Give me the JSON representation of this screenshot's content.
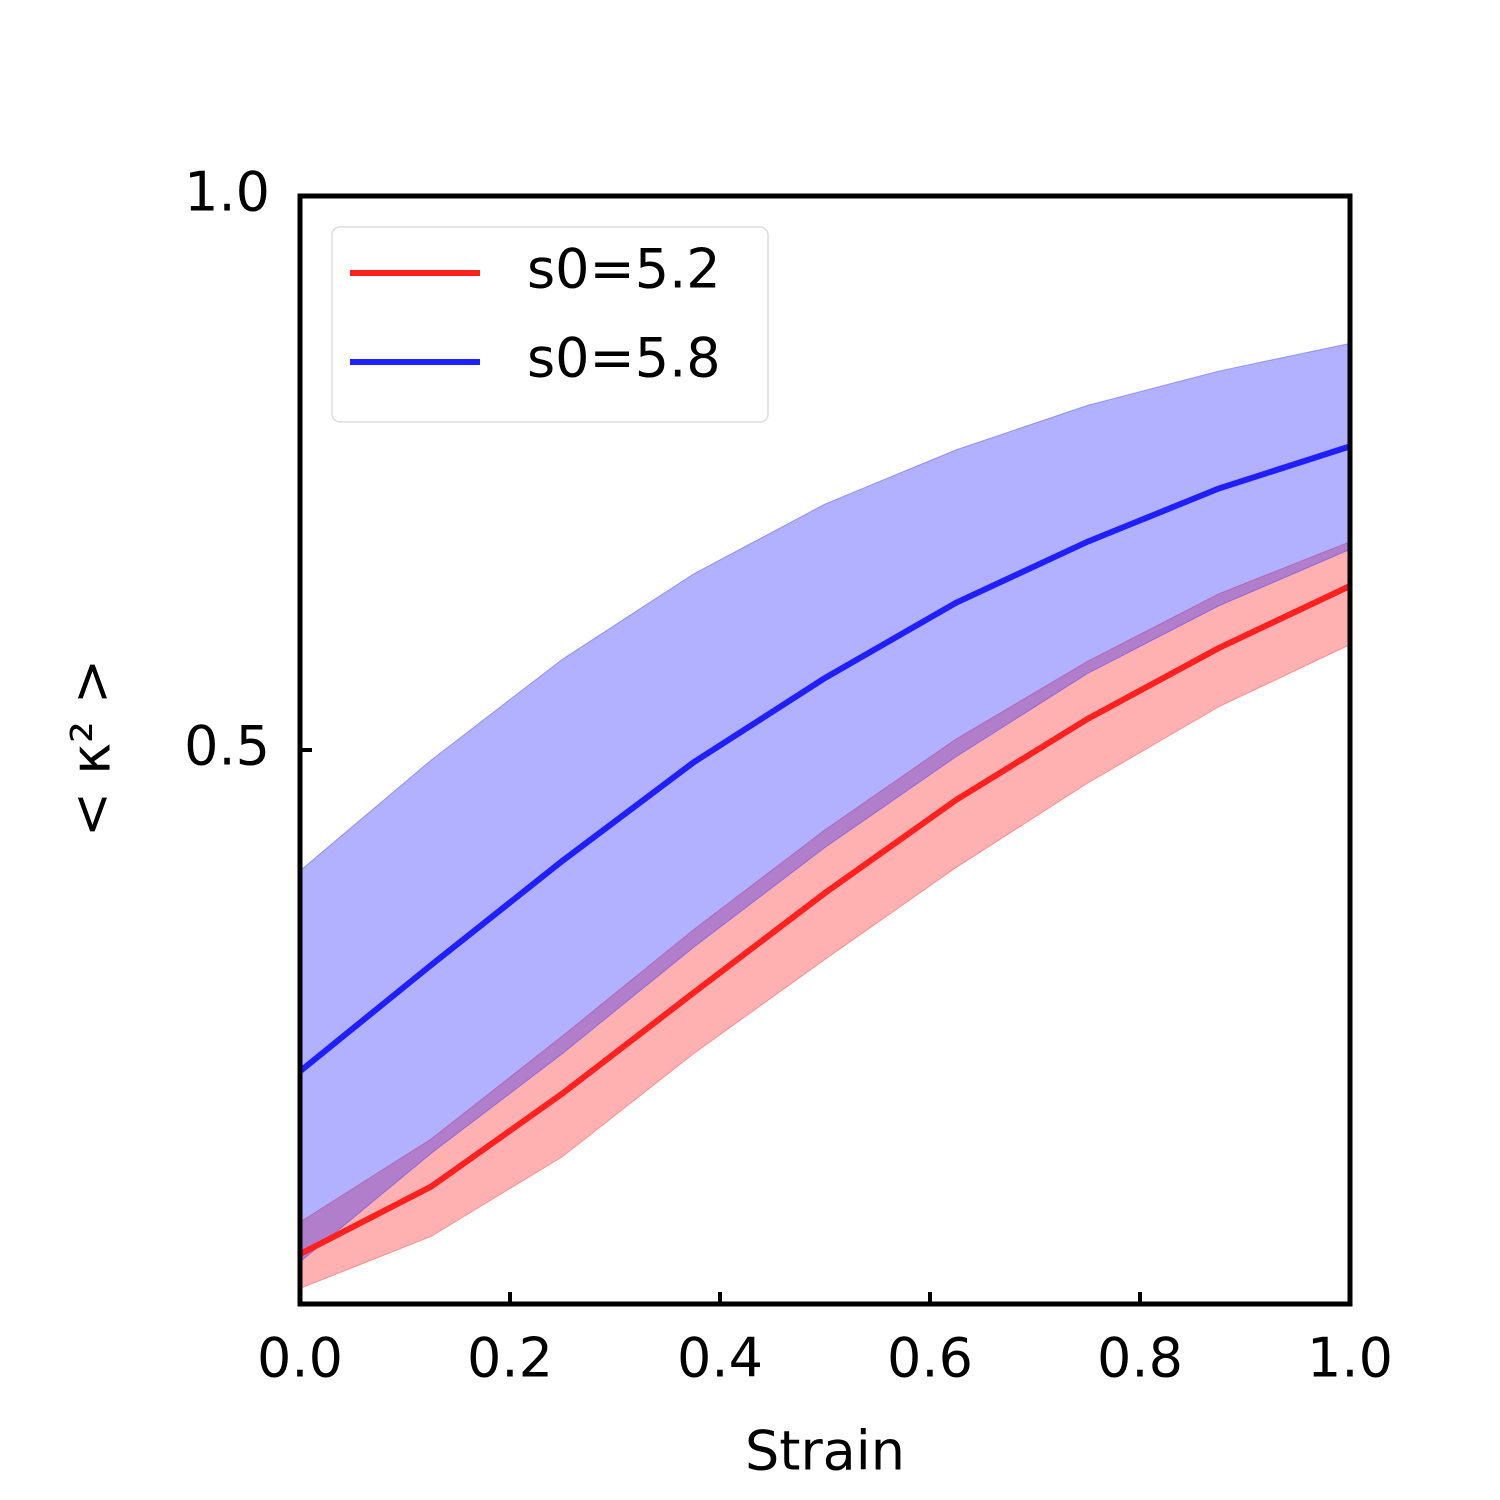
{
  "chart_data": {
    "type": "line",
    "x_label": "Strain",
    "y_label": "< κ² >",
    "x": [
      0,
      0.125,
      0.25,
      0.375,
      0.5,
      0.625,
      0.75,
      0.875,
      1.0
    ],
    "series": [
      {
        "name": "s0=5.2",
        "color": "#ff2020",
        "values": [
          0.045,
          0.106,
          0.19,
          0.281,
          0.371,
          0.455,
          0.528,
          0.592,
          0.648
        ],
        "lower": [
          0.014,
          0.061,
          0.133,
          0.226,
          0.311,
          0.394,
          0.47,
          0.539,
          0.595
        ],
        "upper": [
          0.074,
          0.149,
          0.242,
          0.338,
          0.428,
          0.51,
          0.58,
          0.641,
          0.688
        ]
      },
      {
        "name": "s0=5.8",
        "color": "#2020ff",
        "values": [
          0.21,
          0.306,
          0.4,
          0.489,
          0.565,
          0.633,
          0.688,
          0.736,
          0.774
        ],
        "lower": [
          0.038,
          0.136,
          0.226,
          0.322,
          0.412,
          0.494,
          0.569,
          0.63,
          0.681
        ],
        "upper": [
          0.391,
          0.491,
          0.582,
          0.659,
          0.722,
          0.771,
          0.811,
          0.842,
          0.867
        ]
      }
    ],
    "xlim": [
      0,
      1
    ],
    "ylim": [
      0,
      1
    ],
    "xticks": [
      {
        "value": 0,
        "label": "0.0"
      },
      0.2,
      0.4,
      0.6,
      0.8,
      {
        "value": 1,
        "label": "1.0"
      }
    ],
    "yticks": [
      0.5,
      {
        "value": 1,
        "label": "1.0"
      }
    ],
    "legend": "upper left"
  }
}
